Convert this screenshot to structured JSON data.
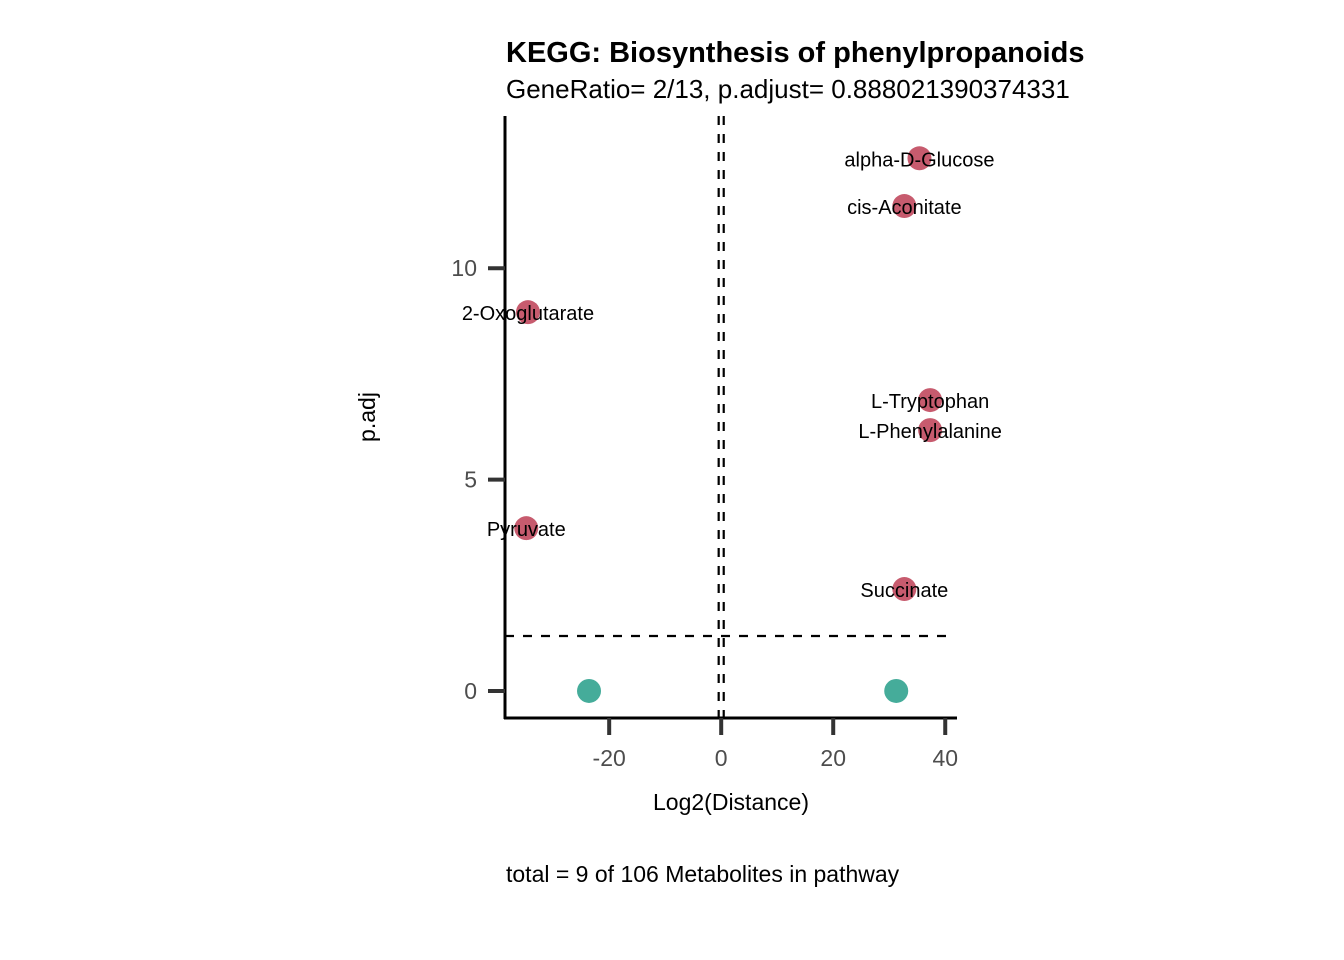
{
  "chart_data": {
    "type": "scatter",
    "title": "KEGG: Biosynthesis of phenylpropanoids",
    "subtitle": "GeneRatio= 2/13, p.adjust= 0.888021390374331",
    "xlabel": "Log2(Distance)",
    "ylabel": "p.adj",
    "caption": "total = 9 of 106 Metabolites in pathway",
    "xlim": [
      -38.6,
      42.1
    ],
    "ylim": [
      -0.64,
      13.6
    ],
    "xticks": [
      -20,
      0,
      20,
      40
    ],
    "xtick_labels": [
      "-20",
      "0",
      "20",
      "40"
    ],
    "yticks": [
      0,
      5,
      10
    ],
    "ytick_labels": [
      "0",
      "5",
      "10"
    ],
    "grid": false,
    "hline": 1.3,
    "vlines": [
      -0.45,
      0.45
    ],
    "colors": {
      "significant": "#C75B6E",
      "not_significant": "#45AC9A"
    },
    "points": [
      {
        "label": "alpha-D-Glucose",
        "x": 35.4,
        "y": 12.6,
        "group": "significant"
      },
      {
        "label": "cis-Aconitate",
        "x": 32.7,
        "y": 11.47,
        "group": "significant"
      },
      {
        "label": "2-Oxoglutarate",
        "x": -34.5,
        "y": 8.96,
        "group": "significant"
      },
      {
        "label": "L-Tryptophan",
        "x": 37.3,
        "y": 6.88,
        "group": "significant"
      },
      {
        "label": "L-Phenylalanine",
        "x": 37.3,
        "y": 6.17,
        "group": "significant"
      },
      {
        "label": "Pyruvate",
        "x": -34.8,
        "y": 3.85,
        "group": "significant"
      },
      {
        "label": "Succinate",
        "x": 32.7,
        "y": 2.41,
        "group": "significant"
      },
      {
        "label": "",
        "x": -23.6,
        "y": 0,
        "group": "not_significant"
      },
      {
        "label": "",
        "x": 31.25,
        "y": 0,
        "group": "not_significant"
      }
    ]
  }
}
